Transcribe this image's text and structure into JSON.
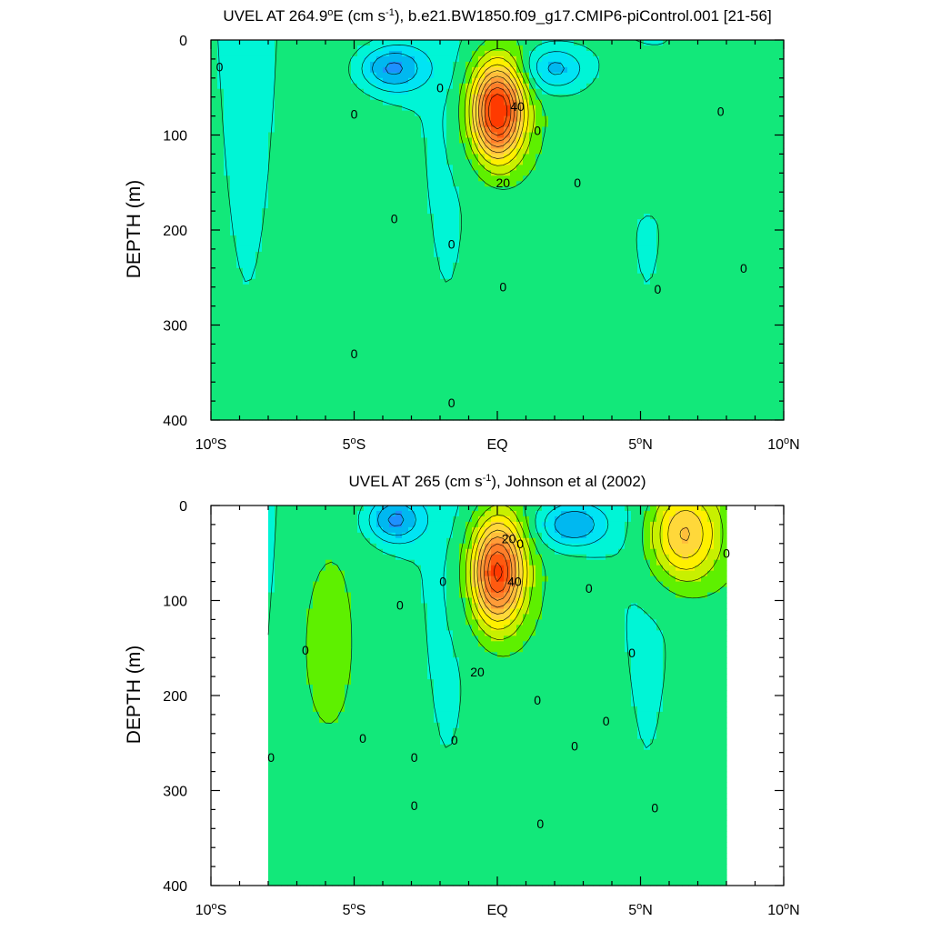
{
  "chart_data": [
    {
      "type": "heatmap",
      "title_prefix": "UVEL AT 264.9",
      "title_degree": "o",
      "title_mid": "E (cm s",
      "title_exp": "-1",
      "title_suffix": "), b.e21.BW1850.f09_g17.CMIP6-piControl.001 [21-56]",
      "ylabel": "DEPTH (m)",
      "xlim": [
        -10,
        10
      ],
      "ylim": [
        0,
        400
      ],
      "y_inverted": true,
      "xticks": [
        {
          "value": -10,
          "num": "10",
          "deg": "o",
          "hem": "S"
        },
        {
          "value": -5,
          "num": "5",
          "deg": "o",
          "hem": "S"
        },
        {
          "value": 0,
          "num": "EQ",
          "deg": "",
          "hem": ""
        },
        {
          "value": 5,
          "num": "5",
          "deg": "o",
          "hem": "N"
        },
        {
          "value": 10,
          "num": "10",
          "deg": "o",
          "hem": "N"
        }
      ],
      "yticks": [
        0,
        100,
        200,
        300,
        400
      ],
      "contour_interval": 5,
      "cores": [
        {
          "lat": 0.0,
          "depth": 75,
          "max": 50,
          "sx": 0.9,
          "sy": 50
        },
        {
          "lat": -3.7,
          "depth": 30,
          "min": -18,
          "sx": 1.2,
          "sy": 25
        },
        {
          "lat": 2.0,
          "depth": 30,
          "min": -15,
          "sx": 1.1,
          "sy": 25
        },
        {
          "lat": 5.0,
          "depth": 80,
          "max": 5,
          "sx": 1.3,
          "sy": 60
        }
      ],
      "contour_labels": [
        {
          "value": "0",
          "lat": -9.7,
          "depth": 28
        },
        {
          "value": "0",
          "lat": -5.0,
          "depth": 78
        },
        {
          "value": "0",
          "lat": -2.0,
          "depth": 50
        },
        {
          "value": "40",
          "lat": 0.7,
          "depth": 70
        },
        {
          "value": "0",
          "lat": 1.4,
          "depth": 95
        },
        {
          "value": "20",
          "lat": 0.2,
          "depth": 150
        },
        {
          "value": "0",
          "lat": 2.8,
          "depth": 150
        },
        {
          "value": "0",
          "lat": 7.8,
          "depth": 75
        },
        {
          "value": "0",
          "lat": -3.6,
          "depth": 188
        },
        {
          "value": "0",
          "lat": -1.6,
          "depth": 215
        },
        {
          "value": "0",
          "lat": 0.2,
          "depth": 260
        },
        {
          "value": "0",
          "lat": 8.6,
          "depth": 240
        },
        {
          "value": "0",
          "lat": 5.6,
          "depth": 262
        },
        {
          "value": "0",
          "lat": -5.0,
          "depth": 330
        },
        {
          "value": "0",
          "lat": -1.6,
          "depth": 382
        }
      ]
    },
    {
      "type": "heatmap",
      "title_prefix": "UVEL AT 265 (cm s",
      "title_degree": "",
      "title_mid": "",
      "title_exp": "-1",
      "title_suffix": "), Johnson et al (2002)",
      "ylabel": "DEPTH (m)",
      "xlim": [
        -10,
        10
      ],
      "ylim": [
        0,
        400
      ],
      "y_inverted": true,
      "xticks": [
        {
          "value": -10,
          "num": "10",
          "deg": "o",
          "hem": "S"
        },
        {
          "value": -5,
          "num": "5",
          "deg": "o",
          "hem": "S"
        },
        {
          "value": 0,
          "num": "EQ",
          "deg": "",
          "hem": ""
        },
        {
          "value": 5,
          "num": "5",
          "deg": "o",
          "hem": "N"
        },
        {
          "value": 10,
          "num": "10",
          "deg": "o",
          "hem": "N"
        }
      ],
      "yticks": [
        0,
        100,
        200,
        300,
        400
      ],
      "contour_interval": 5,
      "data_lat_range": [
        -8,
        8
      ],
      "cores": [
        {
          "lat": 0.0,
          "depth": 70,
          "max": 45,
          "sx": 0.9,
          "sy": 55
        },
        {
          "lat": -3.6,
          "depth": 15,
          "min": -18,
          "sx": 1.0,
          "sy": 25
        },
        {
          "lat": 2.6,
          "depth": 20,
          "min": -18,
          "sx": 1.2,
          "sy": 25
        },
        {
          "lat": 6.5,
          "depth": 30,
          "max": 25,
          "sx": 1.2,
          "sy": 50
        },
        {
          "lat": -6.0,
          "depth": 150,
          "max": 6,
          "sx": 0.8,
          "sy": 80
        }
      ],
      "contour_labels": [
        {
          "value": "20",
          "lat": 0.4,
          "depth": 35
        },
        {
          "value": "0",
          "lat": 0.8,
          "depth": 40
        },
        {
          "value": "40",
          "lat": 0.6,
          "depth": 80
        },
        {
          "value": "0",
          "lat": -1.9,
          "depth": 80
        },
        {
          "value": "0",
          "lat": 3.2,
          "depth": 87
        },
        {
          "value": "0",
          "lat": 8.0,
          "depth": 50
        },
        {
          "value": "0",
          "lat": -3.4,
          "depth": 105
        },
        {
          "value": "0",
          "lat": -6.7,
          "depth": 152
        },
        {
          "value": "0",
          "lat": 4.7,
          "depth": 155
        },
        {
          "value": "20",
          "lat": -0.7,
          "depth": 175
        },
        {
          "value": "0",
          "lat": 1.4,
          "depth": 205
        },
        {
          "value": "0",
          "lat": 3.8,
          "depth": 227
        },
        {
          "value": "0",
          "lat": -4.7,
          "depth": 245
        },
        {
          "value": "0",
          "lat": -1.5,
          "depth": 247
        },
        {
          "value": "0",
          "lat": 2.7,
          "depth": 253
        },
        {
          "value": "0",
          "lat": -7.9,
          "depth": 265
        },
        {
          "value": "0",
          "lat": -2.9,
          "depth": 265
        },
        {
          "value": "0",
          "lat": -2.9,
          "depth": 316
        },
        {
          "value": "0",
          "lat": 5.5,
          "depth": 318
        },
        {
          "value": "0",
          "lat": 1.5,
          "depth": 335
        }
      ]
    }
  ],
  "colors": {
    "scale": [
      {
        "threshold": -15,
        "color": "#1e90ff"
      },
      {
        "threshold": -10,
        "color": "#00b8f0"
      },
      {
        "threshold": -5,
        "color": "#00e4f4"
      },
      {
        "threshold": 0,
        "color": "#00f5d6"
      },
      {
        "threshold": 5,
        "color": "#12e87a"
      },
      {
        "threshold": 10,
        "color": "#5ef000"
      },
      {
        "threshold": 15,
        "color": "#c8f000"
      },
      {
        "threshold": 20,
        "color": "#fff000"
      },
      {
        "threshold": 25,
        "color": "#ffd83a"
      },
      {
        "threshold": 30,
        "color": "#ffbe3c"
      },
      {
        "threshold": 35,
        "color": "#ff9c38"
      },
      {
        "threshold": 40,
        "color": "#ff7e2a"
      },
      {
        "threshold": 45,
        "color": "#ff5a10"
      },
      {
        "threshold": 999,
        "color": "#ff3a00"
      }
    ]
  }
}
